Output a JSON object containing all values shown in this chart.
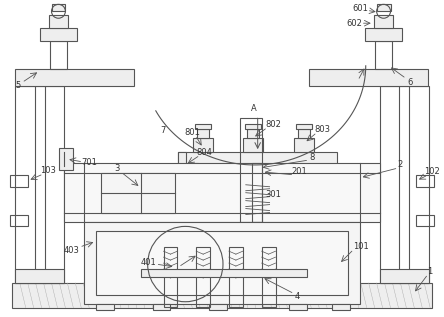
{
  "bg_color": "#ffffff",
  "line_color": "#555555",
  "line_width": 0.8,
  "label_color": "#333333",
  "label_fontsize": 6.0,
  "fig_width": 4.44,
  "fig_height": 3.17,
  "dpi": 100
}
